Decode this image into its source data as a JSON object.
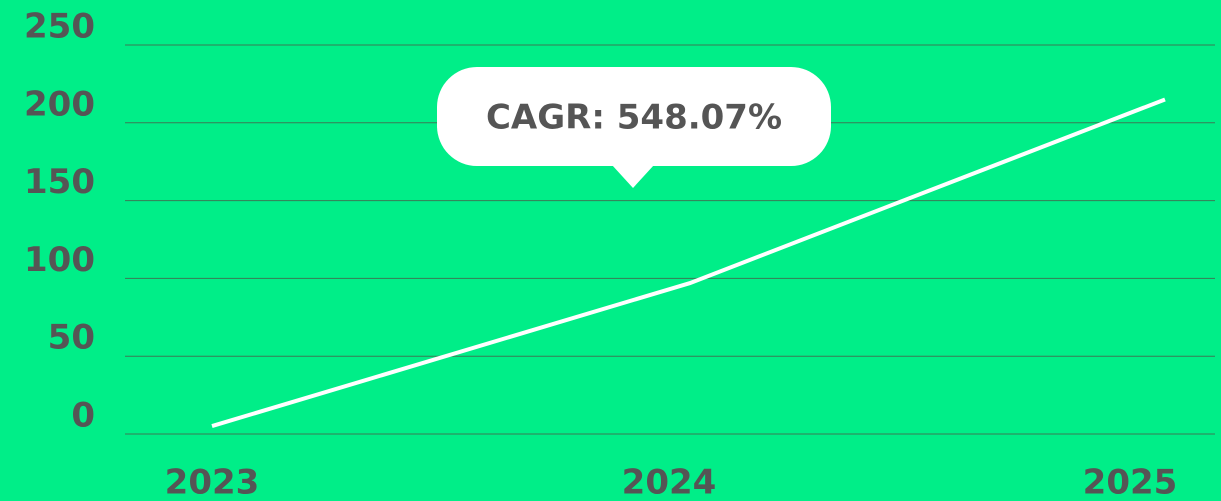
{
  "chart_data": {
    "type": "line",
    "categories": [
      "2023",
      "2024",
      "2025"
    ],
    "series": [
      {
        "name": null,
        "color": "#ffffff",
        "values": [
          5.1,
          97,
          215
        ]
      }
    ],
    "ylim": [
      0,
      250
    ],
    "yticks": [
      0,
      50,
      100,
      150,
      200,
      250
    ],
    "grid": true,
    "annotation": "CAGR: 548.07%"
  }
}
